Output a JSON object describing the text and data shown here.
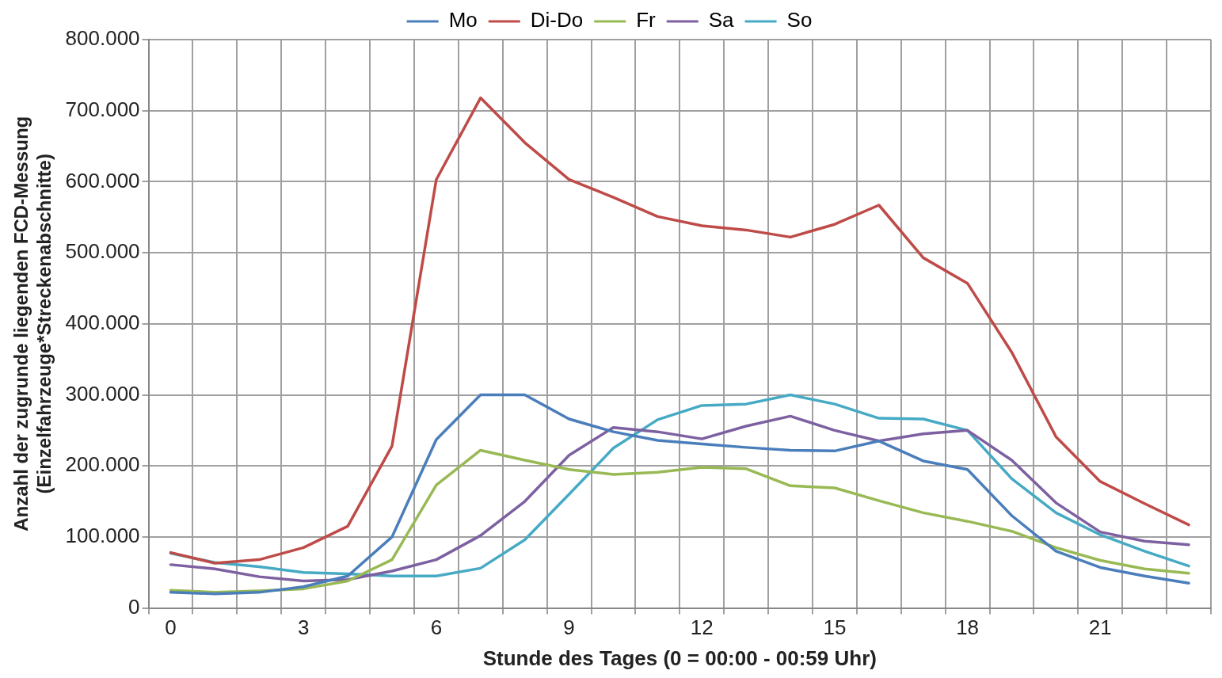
{
  "chart_data": {
    "type": "line",
    "xlabel": "Stunde des Tages (0 = 00:00 - 00:59 Uhr)",
    "ylabel": [
      "Anzahl der zugrunde liegenden FCD-Messung",
      "(Einzelfahrzeuge*Streckenabschnitte)"
    ],
    "categories": [
      "0",
      null,
      null,
      "3",
      null,
      null,
      "6",
      null,
      null,
      "9",
      null,
      null,
      "12",
      null,
      null,
      "15",
      null,
      null,
      "18",
      null,
      null,
      "21",
      null,
      null
    ],
    "series": [
      {
        "name": "Mo",
        "color": "#4a7ebb",
        "values": [
          22000,
          20000,
          22000,
          30000,
          45000,
          100000,
          237000,
          300000,
          300000,
          266000,
          248000,
          236000,
          231000,
          226000,
          222000,
          221000,
          235000,
          207000,
          195000,
          130000,
          80000,
          57000,
          45000,
          35000
        ]
      },
      {
        "name": "Di-Do",
        "color": "#be4b48",
        "values": [
          78000,
          63000,
          68000,
          85000,
          115000,
          228000,
          603000,
          718000,
          655000,
          603000,
          578000,
          551000,
          538000,
          532000,
          522000,
          540000,
          567000,
          493000,
          457000,
          360000,
          241000,
          178000,
          147000,
          117000
        ]
      },
      {
        "name": "Fr",
        "color": "#98b954",
        "values": [
          25000,
          22000,
          24000,
          27000,
          38000,
          68000,
          173000,
          222000,
          208000,
          195000,
          188000,
          191000,
          198000,
          196000,
          172000,
          169000,
          151000,
          134000,
          122000,
          108000,
          85000,
          67000,
          55000,
          49000
        ]
      },
      {
        "name": "Sa",
        "color": "#7d60a0",
        "values": [
          61000,
          55000,
          44000,
          38000,
          40000,
          52000,
          68000,
          102000,
          150000,
          215000,
          254000,
          248000,
          238000,
          256000,
          270000,
          250000,
          235000,
          245000,
          250000,
          208000,
          148000,
          107000,
          94000,
          89000
        ]
      },
      {
        "name": "So",
        "color": "#46aac5",
        "values": [
          77000,
          64000,
          58000,
          50000,
          48000,
          45000,
          45000,
          56000,
          96000,
          160000,
          225000,
          265000,
          285000,
          287000,
          300000,
          287000,
          267000,
          266000,
          250000,
          182000,
          134000,
          103000,
          80000,
          59000
        ]
      }
    ],
    "ylim": [
      0,
      800000
    ],
    "yticks": [
      0,
      {
        "value": 100000,
        "label": "100.000"
      },
      {
        "value": 200000,
        "label": "200.000"
      },
      {
        "value": 300000,
        "label": "300.000"
      },
      {
        "value": 400000,
        "label": "400.000"
      },
      {
        "value": 500000,
        "label": "500.000"
      },
      {
        "value": 600000,
        "label": "600.000"
      },
      {
        "value": 700000,
        "label": "700.000"
      },
      {
        "value": 800000,
        "label": "800.000"
      }
    ],
    "grid": true,
    "legend": "top",
    "marker": "none",
    "line_style": "solid"
  }
}
